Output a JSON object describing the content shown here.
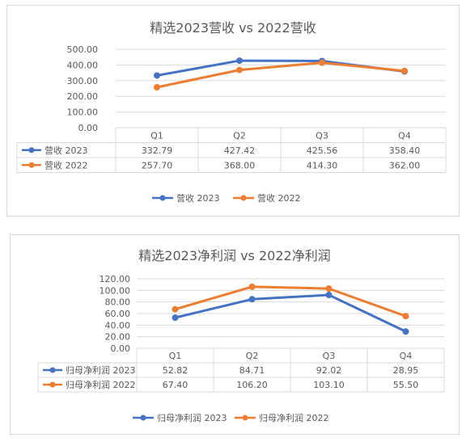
{
  "chart_data": [
    {
      "type": "line",
      "title": "精选2023营收 vs 2022营收",
      "categories": [
        "Q1",
        "Q2",
        "Q3",
        "Q4"
      ],
      "y_ticks": [
        "0.00",
        "100.00",
        "200.00",
        "300.00",
        "400.00",
        "500.00"
      ],
      "ylim": [
        0,
        500
      ],
      "grid": true,
      "legend": "bottom",
      "data_table": true,
      "series": [
        {
          "name": "营收 2023",
          "color": "#4472C4",
          "values": [
            332.79,
            427.42,
            425.56,
            358.4
          ],
          "labels": [
            "332.79",
            "427.42",
            "425.56",
            "358.40"
          ]
        },
        {
          "name": "营收 2022",
          "color": "#ED7D31",
          "values": [
            257.7,
            368.0,
            414.3,
            362.0
          ],
          "labels": [
            "257.70",
            "368.00",
            "414.30",
            "362.00"
          ]
        }
      ]
    },
    {
      "type": "line",
      "title": "精选2023净利润 vs 2022净利润",
      "categories": [
        "Q1",
        "Q2",
        "Q3",
        "Q4"
      ],
      "y_ticks": [
        "0.00",
        "20.00",
        "40.00",
        "60.00",
        "80.00",
        "100.00",
        "120.00"
      ],
      "ylim": [
        0,
        120
      ],
      "grid": true,
      "legend": "bottom",
      "data_table": true,
      "series": [
        {
          "name": "归母净利润 2023",
          "color": "#4472C4",
          "values": [
            52.82,
            84.71,
            92.02,
            28.95
          ],
          "labels": [
            "52.82",
            "84.71",
            "92.02",
            "28.95"
          ]
        },
        {
          "name": "归母净利润 2022",
          "color": "#ED7D31",
          "values": [
            67.4,
            106.2,
            103.1,
            55.5
          ],
          "labels": [
            "67.40",
            "106.20",
            "103.10",
            "55.50"
          ]
        }
      ]
    }
  ]
}
